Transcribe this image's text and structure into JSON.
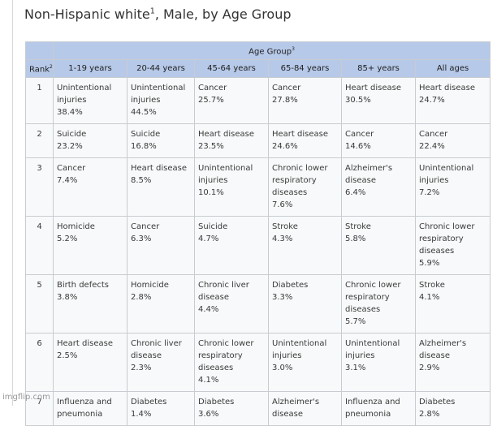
{
  "title": {
    "main": "Non-Hispanic white",
    "sup": "1",
    "rest": ", Male, by Age Group"
  },
  "table": {
    "group_header": {
      "text": "Age Group",
      "sup": "3"
    },
    "rank_header": {
      "text": "Rank",
      "sup": "2"
    },
    "columns": [
      "1-19 years",
      "20-44 years",
      "45-64 years",
      "65-84 years",
      "85+ years",
      "All ages"
    ],
    "rows": [
      {
        "rank": "1",
        "cells": [
          {
            "cause": "Unintentional injuries",
            "percent": "38.4%"
          },
          {
            "cause": "Unintentional injuries",
            "percent": "44.5%"
          },
          {
            "cause": "Cancer",
            "percent": "25.7%"
          },
          {
            "cause": "Cancer",
            "percent": "27.8%"
          },
          {
            "cause": "Heart disease",
            "percent": "30.5%"
          },
          {
            "cause": "Heart disease",
            "percent": "24.7%"
          }
        ]
      },
      {
        "rank": "2",
        "cells": [
          {
            "cause": "Suicide",
            "percent": "23.2%"
          },
          {
            "cause": "Suicide",
            "percent": "16.8%"
          },
          {
            "cause": "Heart disease",
            "percent": "23.5%"
          },
          {
            "cause": "Heart disease",
            "percent": "24.6%"
          },
          {
            "cause": "Cancer",
            "percent": "14.6%"
          },
          {
            "cause": "Cancer",
            "percent": "22.4%"
          }
        ]
      },
      {
        "rank": "3",
        "cells": [
          {
            "cause": "Cancer",
            "percent": "7.4%"
          },
          {
            "cause": "Heart disease",
            "percent": "8.5%"
          },
          {
            "cause": "Unintentional injuries",
            "percent": "10.1%"
          },
          {
            "cause": "Chronic lower respiratory diseases",
            "percent": "7.6%"
          },
          {
            "cause": "Alzheimer's disease",
            "percent": "6.4%"
          },
          {
            "cause": "Unintentional injuries",
            "percent": "7.2%"
          }
        ]
      },
      {
        "rank": "4",
        "cells": [
          {
            "cause": "Homicide",
            "percent": "5.2%"
          },
          {
            "cause": "Cancer",
            "percent": "6.3%"
          },
          {
            "cause": "Suicide",
            "percent": "4.7%"
          },
          {
            "cause": "Stroke",
            "percent": "4.3%"
          },
          {
            "cause": "Stroke",
            "percent": "5.8%"
          },
          {
            "cause": "Chronic lower respiratory diseases",
            "percent": "5.9%"
          }
        ]
      },
      {
        "rank": "5",
        "cells": [
          {
            "cause": "Birth defects",
            "percent": "3.8%"
          },
          {
            "cause": "Homicide",
            "percent": "2.8%"
          },
          {
            "cause": "Chronic liver disease",
            "percent": "4.4%"
          },
          {
            "cause": "Diabetes",
            "percent": "3.3%"
          },
          {
            "cause": "Chronic lower respiratory diseases",
            "percent": "5.7%"
          },
          {
            "cause": "Stroke",
            "percent": "4.1%"
          }
        ]
      },
      {
        "rank": "6",
        "cells": [
          {
            "cause": "Heart disease",
            "percent": "2.5%"
          },
          {
            "cause": "Chronic liver disease",
            "percent": "2.3%"
          },
          {
            "cause": "Chronic lower respiratory diseases",
            "percent": "4.1%"
          },
          {
            "cause": "Unintentional injuries",
            "percent": "3.0%"
          },
          {
            "cause": "Unintentional injuries",
            "percent": "3.1%"
          },
          {
            "cause": "Alzheimer's disease",
            "percent": "2.9%"
          }
        ]
      },
      {
        "rank": "7",
        "cells": [
          {
            "cause": "Influenza and pneumonia"
          },
          {
            "cause": "Diabetes",
            "percent": "1.4%"
          },
          {
            "cause": "Diabetes",
            "percent": "3.6%"
          },
          {
            "cause": "Alzheimer's disease"
          },
          {
            "cause": "Influenza and pneumonia"
          },
          {
            "cause": "Diabetes",
            "percent": "2.8%"
          }
        ]
      }
    ]
  },
  "watermark": "imgflip.com"
}
